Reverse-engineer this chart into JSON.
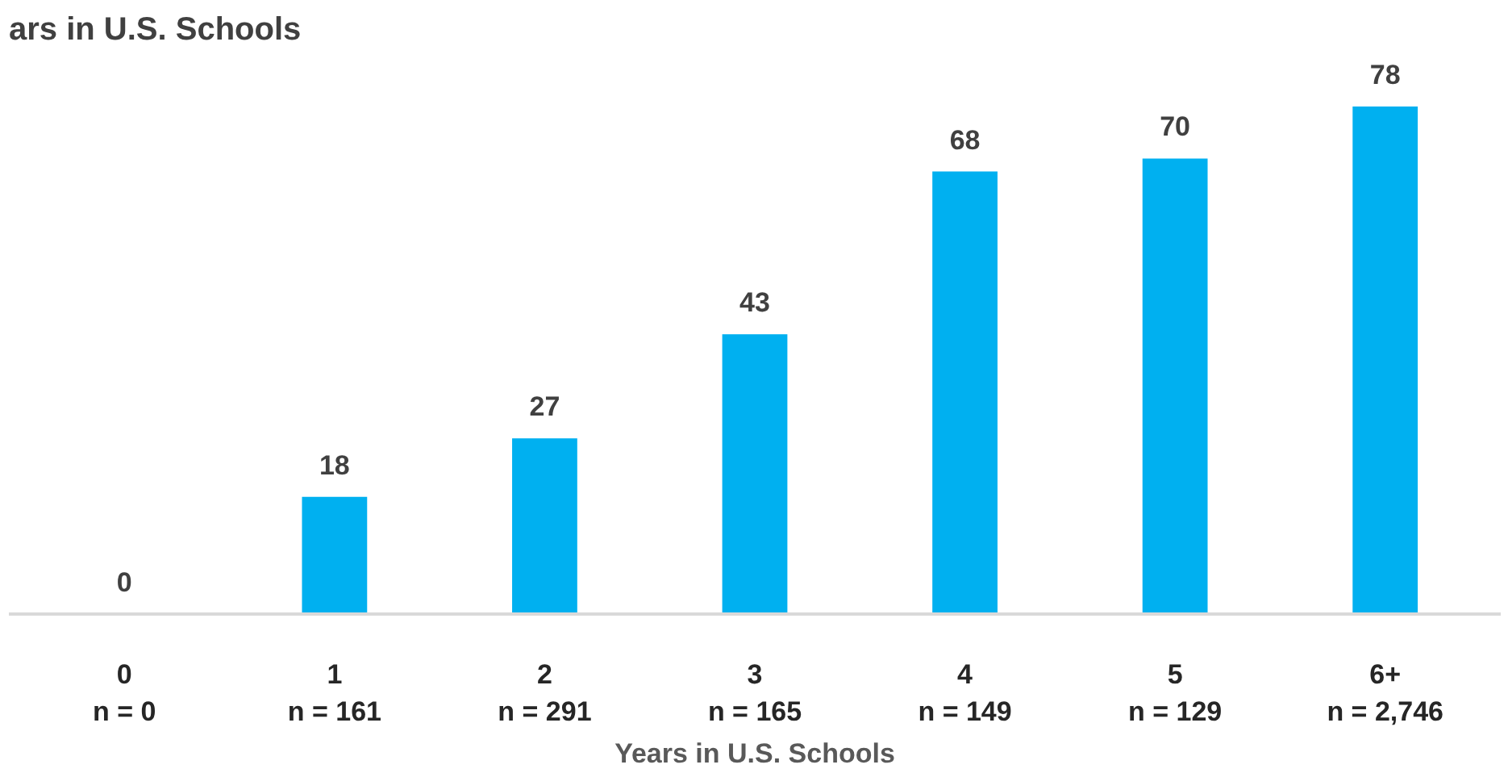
{
  "chart_data": {
    "type": "bar",
    "title": "ars in U.S. Schools",
    "xlabel": "Years in U.S. Schools",
    "categories": [
      "0\nn = 0",
      "1\nn = 161",
      "2\nn = 291",
      "3\nn = 165",
      "4\nn = 149",
      "5\nn = 129",
      "6+\nn = 2,746"
    ],
    "values": [
      0,
      18,
      27,
      43,
      68,
      70,
      78
    ],
    "color": "#00b0f0",
    "data_labels": true,
    "grid": false
  }
}
